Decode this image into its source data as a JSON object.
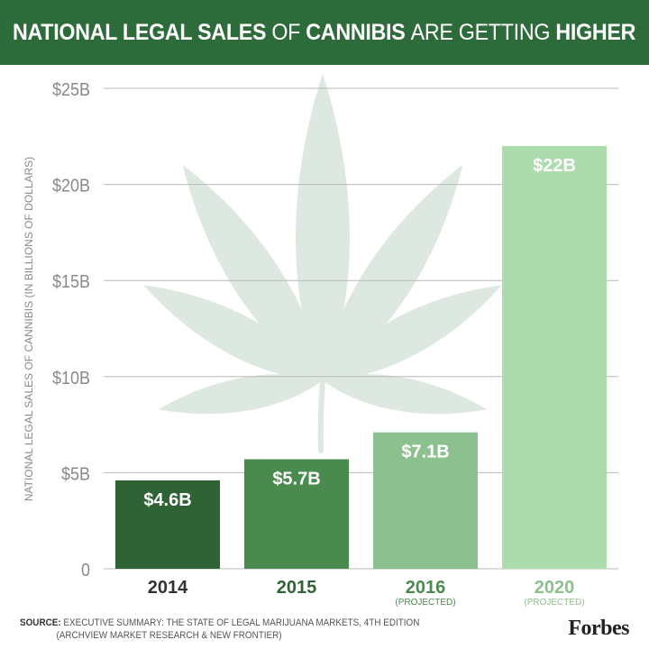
{
  "header": {
    "title_parts": [
      {
        "text": "NATIONAL LEGAL SALES ",
        "bold": true
      },
      {
        "text": "OF ",
        "bold": false
      },
      {
        "text": "CANNIBIS ",
        "bold": true
      },
      {
        "text": "ARE GETTING ",
        "bold": false
      },
      {
        "text": "HIGHER",
        "bold": true
      }
    ]
  },
  "colors": {
    "header_bg": "#2e6b3a",
    "leaf": "#dde8e0",
    "grid": "#b8b8b8",
    "bars": [
      "#2f6336",
      "#4a8a4e",
      "#8dc08f",
      "#acdbae"
    ],
    "year_labels": [
      "#333333",
      "#2f6336",
      "#4a8a4e",
      "#8dc08f"
    ]
  },
  "chart_data": {
    "type": "bar",
    "title": "NATIONAL LEGAL SALES OF CANNIBIS ARE GETTING HIGHER",
    "ylabel": "NATIONAL LEGAL SALES OF CANNIBIS (IN BILLIONS OF DOLLARS)",
    "xlabel": "",
    "ylim": [
      0,
      25
    ],
    "yticks": [
      0,
      5,
      10,
      15,
      20,
      25
    ],
    "ytick_labels": [
      "0",
      "$5B",
      "$10B",
      "$15B",
      "$20B",
      "$25B"
    ],
    "grid": true,
    "categories": [
      "2014",
      "2015",
      "2016",
      "2020"
    ],
    "category_notes": [
      "",
      "",
      "(PROJECTED)",
      "(PROJECTED)"
    ],
    "values": [
      4.6,
      5.7,
      7.1,
      22
    ],
    "data_labels": [
      "$4.6B",
      "$5.7B",
      "$7.1B",
      "$22B"
    ]
  },
  "footer": {
    "source_label": "SOURCE:",
    "source_line1": " EXECUTIVE SUMMARY: THE STATE OF LEGAL MARIJUANA MARKETS, 4TH EDITION",
    "source_line2": "(ARCHVIEW MARKET RESEARCH & NEW FRONTIER)",
    "logo": "Forbes"
  }
}
